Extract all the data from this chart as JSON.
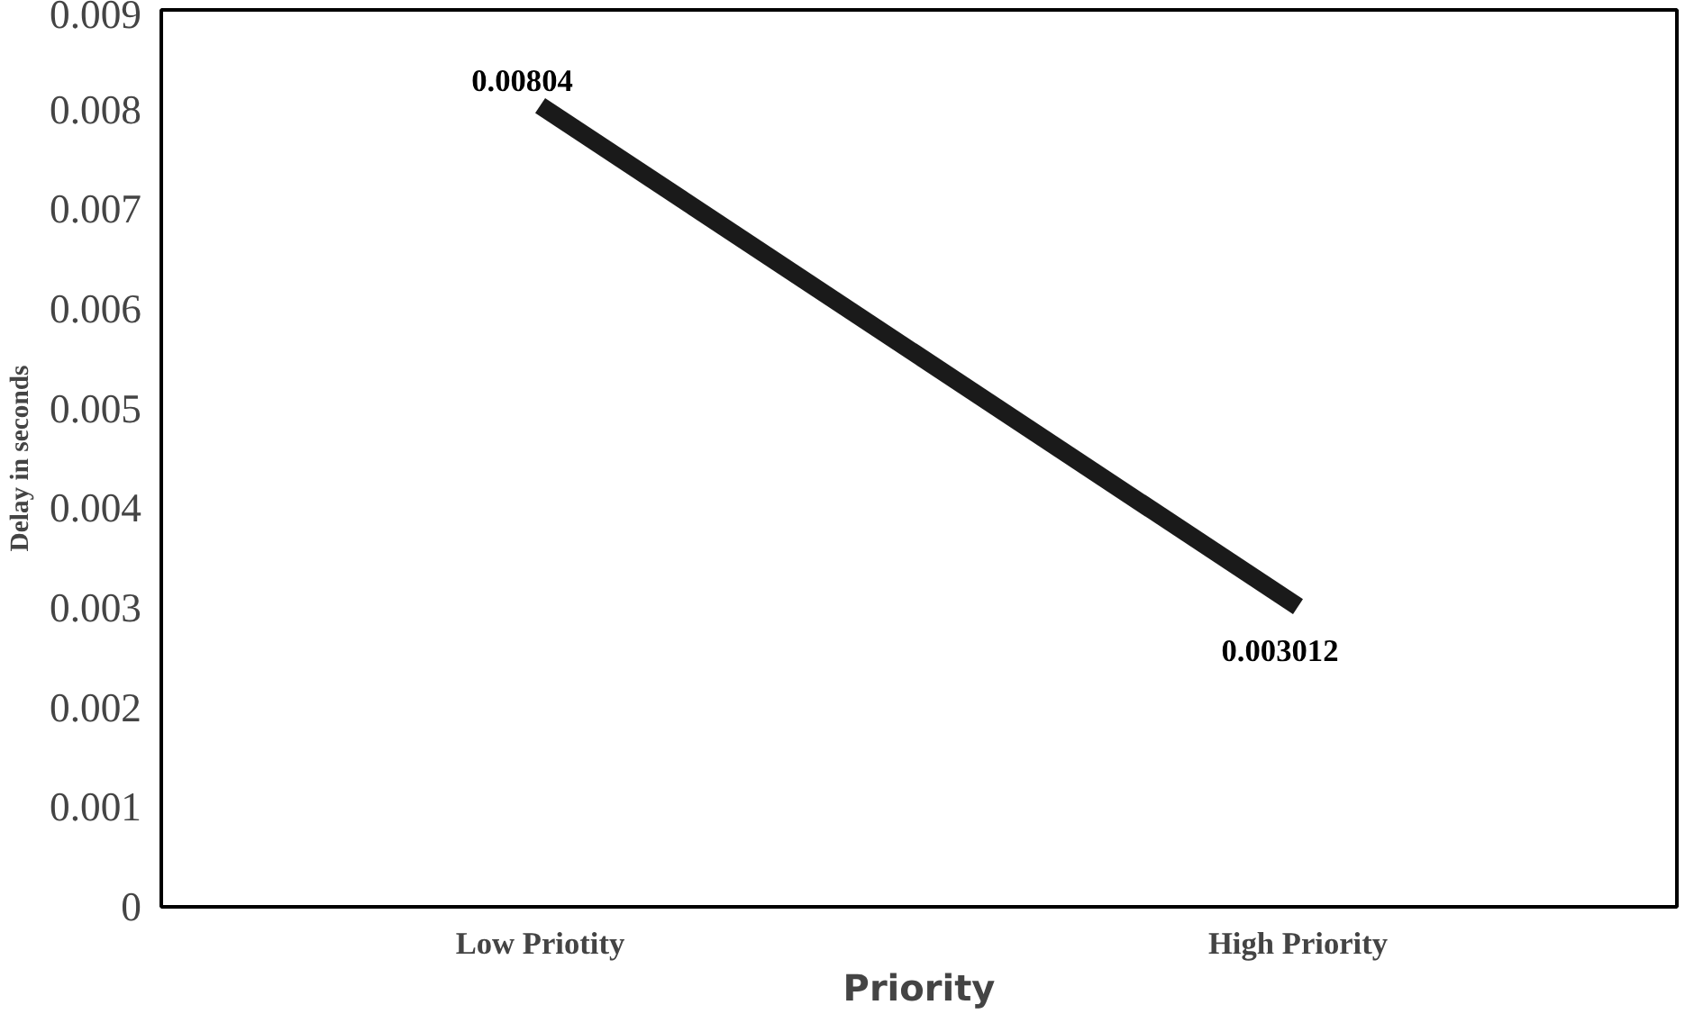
{
  "chart_data": {
    "type": "line",
    "categories": [
      "Low Priotity",
      "High Priority"
    ],
    "xlabel": "Priority",
    "ylabel": "Delay in seconds",
    "series": [
      {
        "color": "#1a1a1a",
        "values": [
          0.00804,
          0.003012
        ]
      }
    ],
    "ylim": [
      0,
      0.009
    ],
    "yticks": [
      0,
      0.001,
      0.002,
      0.003,
      0.004,
      0.005,
      0.006,
      0.007,
      0.008,
      0.009
    ],
    "data_labels": true,
    "line_style": "solid"
  }
}
